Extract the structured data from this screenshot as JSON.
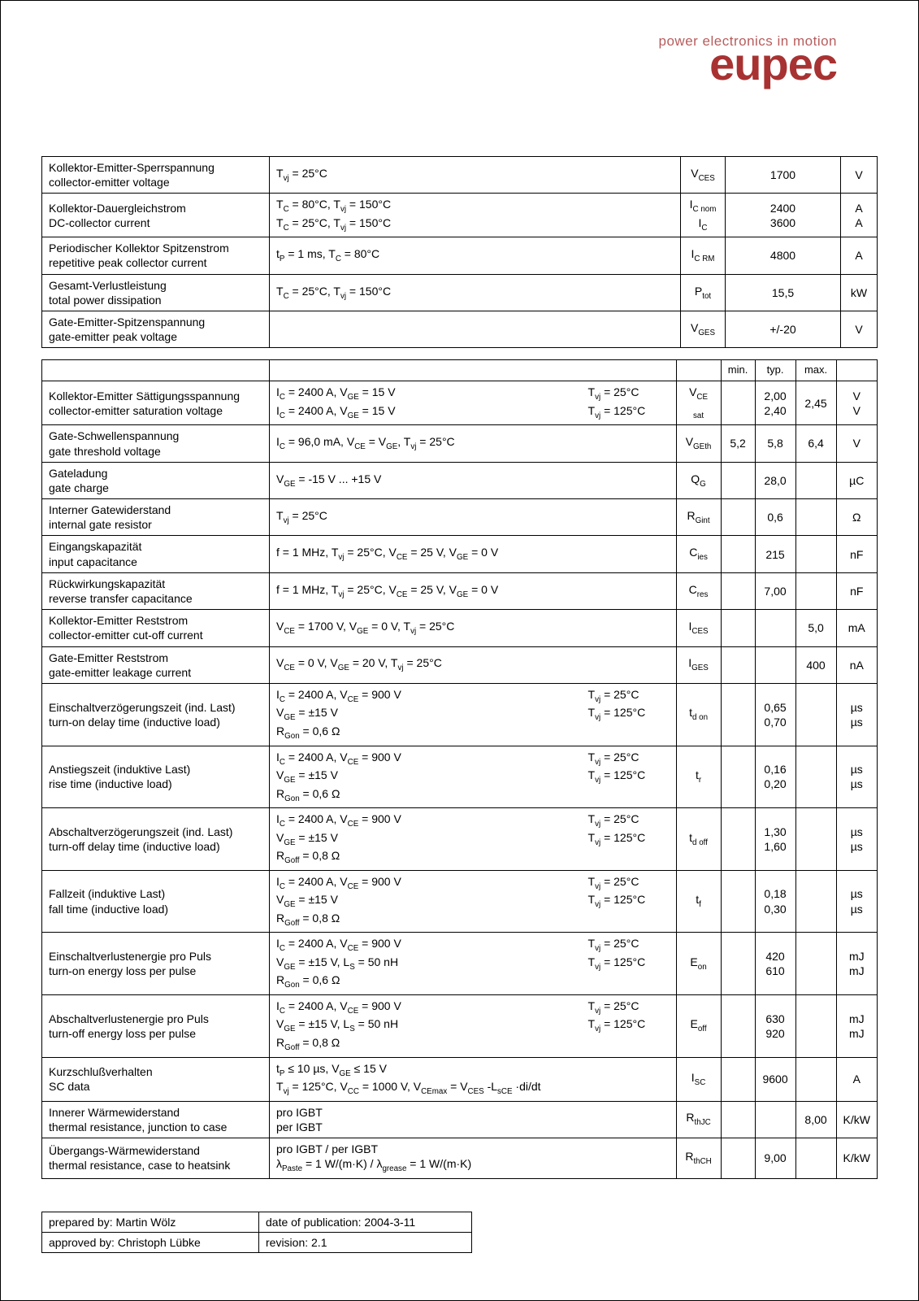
{
  "brand": {
    "tagline": "power electronics in motion",
    "name": "eupec",
    "tagline_color": "#b85c5c",
    "name_color": "#a83232"
  },
  "table1": {
    "rows": [
      {
        "param_de": "Kollektor-Emitter-Sperrspannung",
        "param_en": "collector-emitter voltage",
        "cond": "Tᵥⱼ = 25°C",
        "sym": "V_CES",
        "val": "1700",
        "unit": "V"
      },
      {
        "param_de": "Kollektor-Dauergleichstrom",
        "param_en": "DC-collector current",
        "cond": "T_C = 80°C, Tᵥⱼ = 150°C\nT_C = 25°C, Tᵥⱼ = 150°C",
        "sym": "I_C nom\nI_C",
        "val": "2400\n3600",
        "unit": "A\nA"
      },
      {
        "param_de": "Periodischer Kollektor Spitzenstrom",
        "param_en": "repetitive peak collector current",
        "cond": "t_P = 1 ms, T_C = 80°C",
        "sym": "I_C RM",
        "val": "4800",
        "unit": "A"
      },
      {
        "param_de": "Gesamt-Verlustleistung",
        "param_en": "total power dissipation",
        "cond": "T_C = 25°C, Tᵥⱼ = 150°C",
        "sym": "P_tot",
        "val": "15,5",
        "unit": "kW"
      },
      {
        "param_de": "Gate-Emitter-Spitzenspannung",
        "param_en": "gate-emitter peak voltage",
        "cond": "",
        "sym": "V_GES",
        "val": "+/-20",
        "unit": "V"
      }
    ]
  },
  "headers2": {
    "min": "min.",
    "typ": "typ.",
    "max": "max."
  },
  "table2": {
    "rows": [
      {
        "param_de": "Kollektor-Emitter Sättigungsspannung",
        "param_en": "collector-emitter saturation voltage",
        "cond_l": "I_C = 2400 A, V_GE = 15 V\nI_C = 2400 A, V_GE = 15 V",
        "cond_r": "Tᵥⱼ = 25°C\nTᵥⱼ = 125°C",
        "sym": "V_CE sat",
        "min": "",
        "typ": "2,00\n2,40",
        "max": "2,45",
        "unit": "V\nV"
      },
      {
        "param_de": "Gate-Schwellenspannung",
        "param_en": "gate threshold voltage",
        "cond_l": "I_C = 96,0 mA, V_CE = V_GE, Tᵥⱼ = 25°C",
        "cond_r": "",
        "sym": "V_GEth",
        "min": "5,2",
        "typ": "5,8",
        "max": "6,4",
        "unit": "V"
      },
      {
        "param_de": "Gateladung",
        "param_en": "gate charge",
        "cond_l": "V_GE = -15 V ... +15 V",
        "cond_r": "",
        "sym": "Q_G",
        "min": "",
        "typ": "28,0",
        "max": "",
        "unit": "µC"
      },
      {
        "param_de": "Interner Gatewiderstand",
        "param_en": "internal gate resistor",
        "cond_l": "Tᵥⱼ = 25°C",
        "cond_r": "",
        "sym": "R_Gint",
        "min": "",
        "typ": "0,6",
        "max": "",
        "unit": "Ω"
      },
      {
        "param_de": "Eingangskapazität",
        "param_en": "input capacitance",
        "cond_l": "f = 1 MHz, Tᵥⱼ = 25°C, V_CE = 25 V, V_GE = 0 V",
        "cond_r": "",
        "sym": "C_ies",
        "min": "",
        "typ": "215",
        "max": "",
        "unit": "nF"
      },
      {
        "param_de": "Rückwirkungskapazität",
        "param_en": "reverse transfer capacitance",
        "cond_l": "f = 1 MHz, Tᵥⱼ = 25°C, V_CE = 25 V, V_GE = 0 V",
        "cond_r": "",
        "sym": "C_res",
        "min": "",
        "typ": "7,00",
        "max": "",
        "unit": "nF"
      },
      {
        "param_de": "Kollektor-Emitter Reststrom",
        "param_en": "collector-emitter cut-off current",
        "cond_l": "V_CE = 1700 V, V_GE = 0 V, Tᵥⱼ = 25°C",
        "cond_r": "",
        "sym": "I_CES",
        "min": "",
        "typ": "",
        "max": "5,0",
        "unit": "mA"
      },
      {
        "param_de": "Gate-Emitter Reststrom",
        "param_en": "gate-emitter leakage current",
        "cond_l": "V_CE = 0 V, V_GE = 20 V, Tᵥⱼ = 25°C",
        "cond_r": "",
        "sym": "I_GES",
        "min": "",
        "typ": "",
        "max": "400",
        "unit": "nA"
      },
      {
        "param_de": "Einschaltverzögerungszeit (ind. Last)",
        "param_en": "turn-on delay time (inductive load)",
        "cond_l": "I_C = 2400 A, V_CE = 900 V\nV_GE = ±15 V\nR_Gon = 0,6 Ω",
        "cond_r": "Tᵥⱼ = 25°C\nTᵥⱼ = 125°C",
        "sym": "t_d on",
        "min": "",
        "typ": "0,65\n0,70",
        "max": "",
        "unit": "µs\nµs"
      },
      {
        "param_de": "Anstiegszeit (induktive Last)",
        "param_en": "rise time (inductive load)",
        "cond_l": "I_C = 2400 A, V_CE = 900 V\nV_GE = ±15 V\nR_Gon = 0,6 Ω",
        "cond_r": "Tᵥⱼ = 25°C\nTᵥⱼ = 125°C",
        "sym": "t_r",
        "min": "",
        "typ": "0,16\n0,20",
        "max": "",
        "unit": "µs\nµs"
      },
      {
        "param_de": "Abschaltverzögerungszeit (ind. Last)",
        "param_en": "turn-off delay time (inductive load)",
        "cond_l": "I_C = 2400 A, V_CE = 900 V\nV_GE = ±15 V\nR_Goff = 0,8 Ω",
        "cond_r": "Tᵥⱼ = 25°C\nTᵥⱼ = 125°C",
        "sym": "t_d off",
        "min": "",
        "typ": "1,30\n1,60",
        "max": "",
        "unit": "µs\nµs"
      },
      {
        "param_de": "Fallzeit (induktive Last)",
        "param_en": "fall time (inductive load)",
        "cond_l": "I_C = 2400 A, V_CE = 900 V\nV_GE = ±15 V\nR_Goff = 0,8 Ω",
        "cond_r": "Tᵥⱼ = 25°C\nTᵥⱼ = 125°C",
        "sym": "t_f",
        "min": "",
        "typ": "0,18\n0,30",
        "max": "",
        "unit": "µs\nµs"
      },
      {
        "param_de": "Einschaltverlustenergie pro Puls",
        "param_en": "turn-on energy loss per pulse",
        "cond_l": "I_C = 2400 A, V_CE = 900 V\nV_GE = ±15 V, L_S = 50 nH\nR_Gon = 0,6 Ω",
        "cond_r": "Tᵥⱼ = 25°C\nTᵥⱼ = 125°C",
        "sym": "E_on",
        "min": "",
        "typ": "420\n610",
        "max": "",
        "unit": "mJ\nmJ"
      },
      {
        "param_de": "Abschaltverlustenergie pro Puls",
        "param_en": "turn-off energy loss per pulse",
        "cond_l": "I_C = 2400 A, V_CE = 900 V\nV_GE = ±15 V, L_S = 50 nH\nR_Goff = 0,8 Ω",
        "cond_r": "Tᵥⱼ = 25°C\nTᵥⱼ = 125°C",
        "sym": "E_off",
        "min": "",
        "typ": "630\n920",
        "max": "",
        "unit": "mJ\nmJ"
      },
      {
        "param_de": "Kurzschlußverhalten",
        "param_en": "SC data",
        "cond_l": "t_P ≤ 10 µs, V_GE ≤ 15 V\nTᵥⱼ = 125°C, V_CC = 1000 V, V_CEmax = V_CES -L_sCE ·di/dt",
        "cond_r": "",
        "sym": "I_SC",
        "min": "",
        "typ": "9600",
        "max": "",
        "unit": "A"
      },
      {
        "param_de": "Innerer Wärmewiderstand",
        "param_en": "thermal resistance, junction to case",
        "cond_l": "pro IGBT\nper IGBT",
        "cond_r": "",
        "sym": "R_thJC",
        "min": "",
        "typ": "",
        "max": "8,00",
        "unit": "K/kW"
      },
      {
        "param_de": "Übergangs-Wärmewiderstand",
        "param_en": "thermal resistance, case to heatsink",
        "cond_l": "pro IGBT / per IGBT\nλ_Paste = 1 W/(m·K)   /    λ_grease = 1 W/(m·K)",
        "cond_r": "",
        "sym": "R_thCH",
        "min": "",
        "typ": "9,00",
        "max": "",
        "unit": "K/kW"
      }
    ]
  },
  "footer": {
    "r1a": "prepared by: Martin Wölz",
    "r1b": "date of publication: 2004-3-11",
    "r2a": "approved by: Christoph Lübke",
    "r2b": "revision: 2.1"
  }
}
